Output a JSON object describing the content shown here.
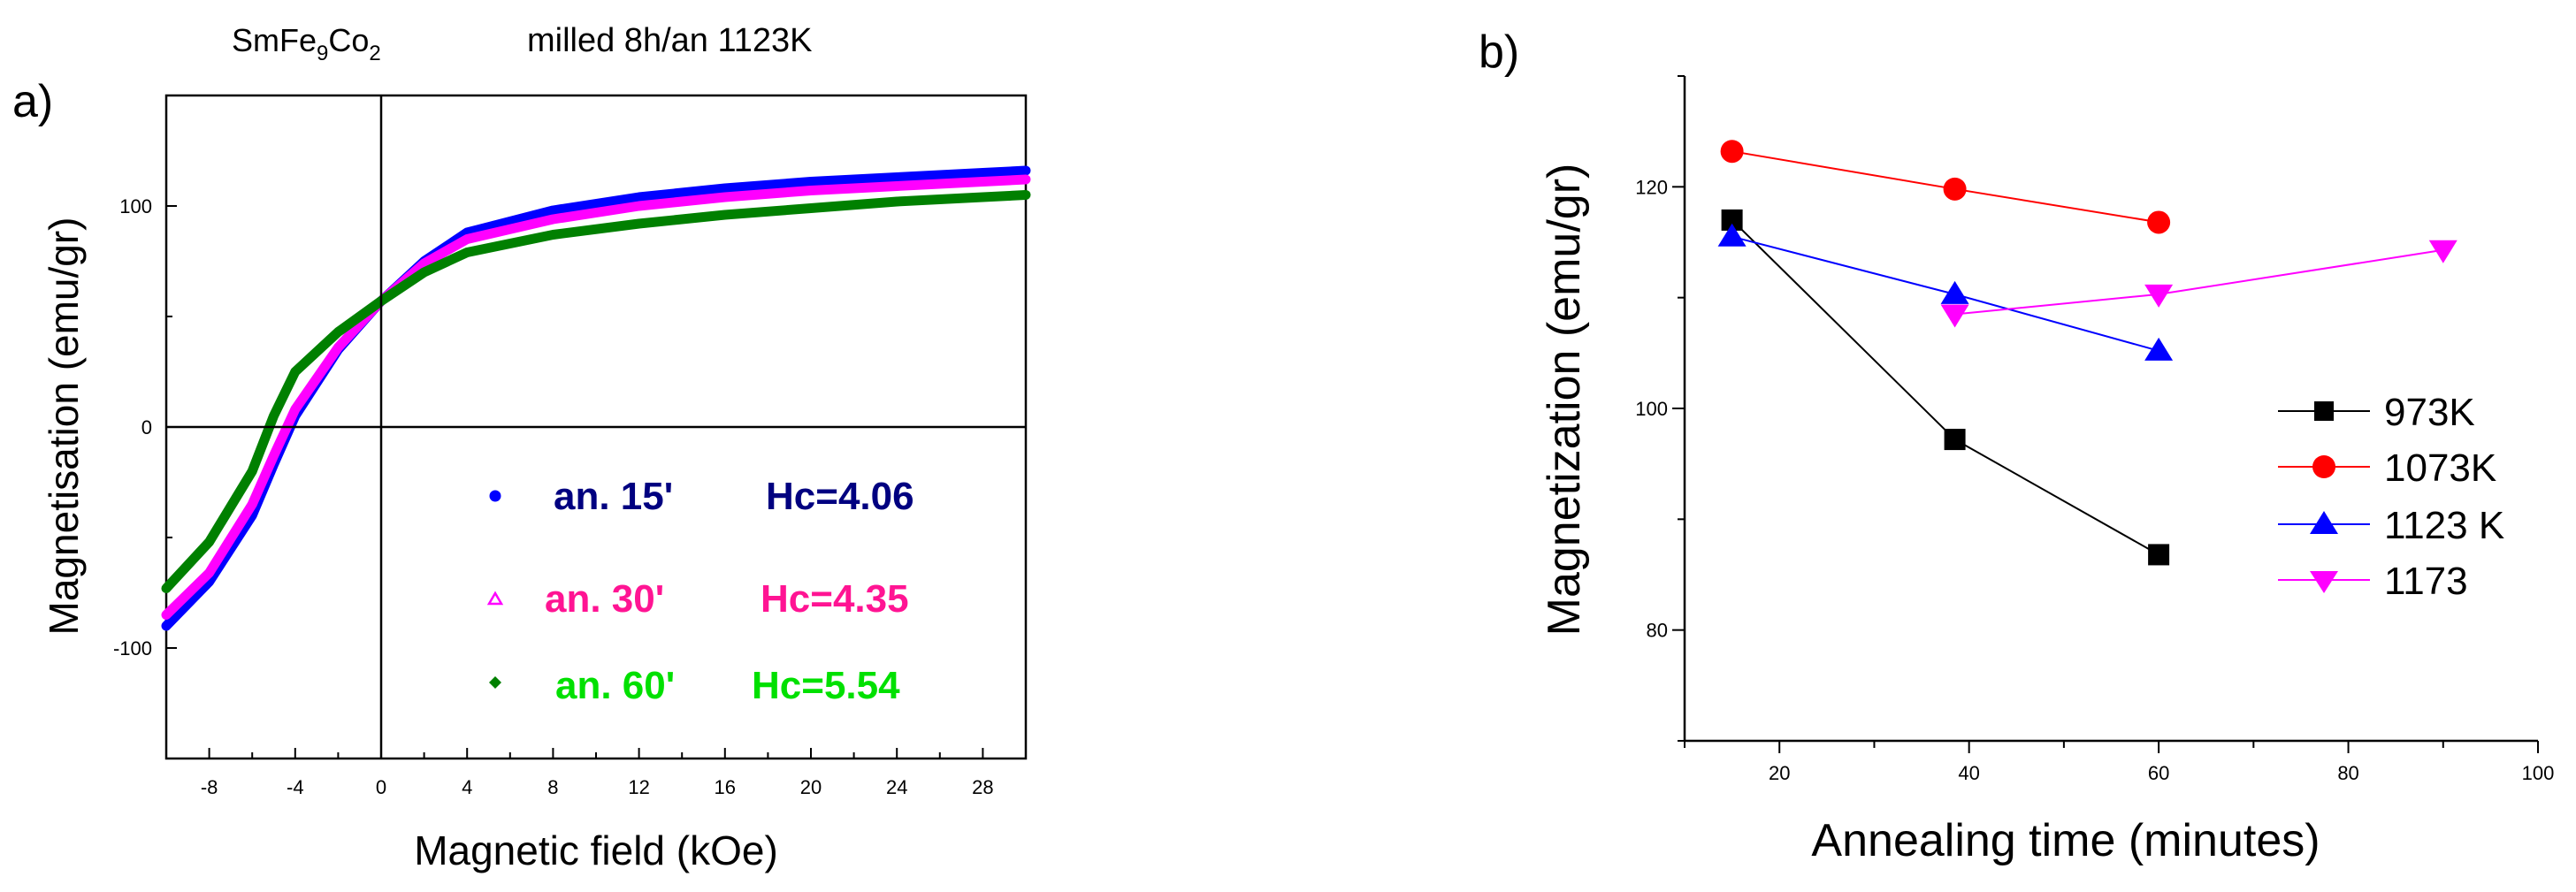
{
  "chart_data": [
    {
      "panel": "a)",
      "type": "line",
      "title_base": "SmFe",
      "title_sub1": "9",
      "title_mid": "Co",
      "title_sub2": "2",
      "subtitle": "milled 8h/an 1123K",
      "xlabel": "Magnetic field (kOe)",
      "ylabel": "Magnetisation (emu/gr)",
      "xlim": [
        -10,
        30
      ],
      "ylim": [
        -150,
        150
      ],
      "xticks": [
        "-8",
        "-4",
        "0",
        "4",
        "8",
        "12",
        "16",
        "20",
        "24",
        "28"
      ],
      "xtick_values": [
        -8,
        -4,
        0,
        4,
        8,
        12,
        16,
        20,
        24,
        28
      ],
      "yticks": [
        "-100",
        "0",
        "100"
      ],
      "ytick_values": [
        -100,
        0,
        100
      ],
      "series": [
        {
          "name": "an. 15'",
          "hc": "Hc=4.06",
          "color": "#0000ff",
          "label_color": "#000080",
          "x": [
            -10,
            -8,
            -6,
            -5,
            -4,
            -2,
            0,
            2,
            4,
            8,
            12,
            16,
            20,
            24,
            28,
            30
          ],
          "y": [
            -90,
            -70,
            -40,
            -17,
            5,
            35,
            57,
            75,
            88,
            98,
            104,
            108,
            111,
            113,
            115,
            116
          ]
        },
        {
          "name": "an. 30'",
          "hc": "Hc=4.35",
          "color": "#ff00ff",
          "label_color": "#ff1493",
          "x": [
            -10,
            -8,
            -6,
            -5,
            -4,
            -2,
            0,
            2,
            4,
            8,
            12,
            16,
            20,
            24,
            28,
            30
          ],
          "y": [
            -85,
            -66,
            -35,
            -13,
            8,
            36,
            57,
            74,
            85,
            94,
            100,
            104,
            107,
            109,
            111,
            112
          ]
        },
        {
          "name": "an. 60'",
          "hc": "Hc=5.54",
          "color": "#008000",
          "label_color": "#00e000",
          "x": [
            -10,
            -8,
            -6,
            -5,
            -4,
            -2,
            0,
            2,
            4,
            8,
            12,
            16,
            20,
            24,
            28,
            30
          ],
          "y": [
            -73,
            -52,
            -20,
            5,
            25,
            43,
            57,
            70,
            79,
            87,
            92,
            96,
            99,
            102,
            104,
            105
          ]
        }
      ]
    },
    {
      "panel": "b)",
      "type": "line",
      "xlabel": "Annealing time (minutes)",
      "ylabel": "Magnetization (emu/gr)",
      "xlim": [
        10,
        100
      ],
      "ylim": [
        70,
        130
      ],
      "xticks": [
        "20",
        "40",
        "60",
        "80",
        "100"
      ],
      "xtick_values": [
        20,
        40,
        60,
        80,
        100
      ],
      "yticks": [
        "80",
        "100",
        "120"
      ],
      "ytick_values": [
        80,
        100,
        120
      ],
      "series": [
        {
          "name": "973K",
          "color": "#000000",
          "marker": "square",
          "x": [
            15,
            38.5,
            60
          ],
          "y": [
            117,
            97.2,
            86.8
          ]
        },
        {
          "name": "1073K",
          "color": "#ff0000",
          "marker": "circle",
          "x": [
            15,
            38.5,
            60
          ],
          "y": [
            123.2,
            119.8,
            116.8
          ]
        },
        {
          "name": "1123 K",
          "color": "#0000ff",
          "marker": "triangle-up",
          "x": [
            15,
            38.5,
            60
          ],
          "y": [
            115.5,
            110.3,
            105.2
          ]
        },
        {
          "name": "1173",
          "color": "#ff00ff",
          "marker": "triangle-down",
          "x": [
            38.5,
            60,
            90
          ],
          "y": [
            108.5,
            110.3,
            114.3
          ]
        }
      ]
    }
  ]
}
